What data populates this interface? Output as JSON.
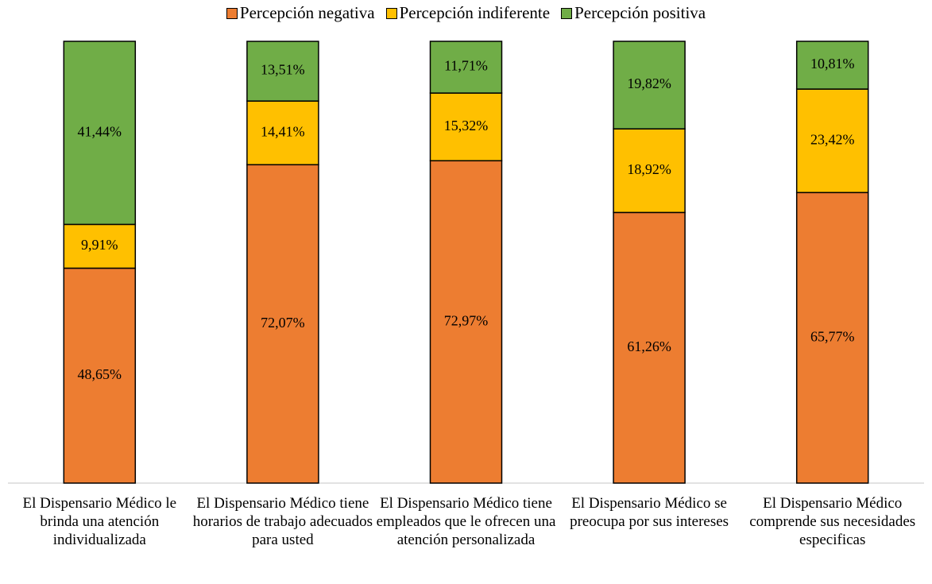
{
  "chart_data": {
    "type": "stacked_bar",
    "categories": [
      "El Dispensario Médico le brinda una atención individualizada",
      "El Dispensario Médico tiene horarios de trabajo adecuados para usted",
      "El Dispensario Médico tiene empleados que le ofrecen una atención personalizada",
      "El Dispensario Médico se preocupa por sus intereses",
      "El Dispensario Médico comprende sus necesidades especificas"
    ],
    "series": [
      {
        "name": "Percepción negativa",
        "color": "#ed7d31",
        "values": [
          48.65,
          72.07,
          72.97,
          61.26,
          65.77
        ],
        "value_labels": [
          "48,65%",
          "72,07%",
          "72,97%",
          "61,26%",
          "65,77%"
        ]
      },
      {
        "name": "Percepción indiferente",
        "color": "#ffc000",
        "values": [
          9.91,
          14.41,
          15.32,
          18.92,
          23.42
        ],
        "value_labels": [
          "9,91%",
          "14,41%",
          "15,32%",
          "18,92%",
          "23,42%"
        ]
      },
      {
        "name": "Percepción positiva",
        "color": "#70ad47",
        "values": [
          41.44,
          13.51,
          11.71,
          19.82,
          10.81
        ],
        "value_labels": [
          "41,44%",
          "13,51%",
          "11,71%",
          "19,82%",
          "10,81%"
        ]
      }
    ],
    "ylim": [
      0,
      100
    ],
    "legend": "top"
  }
}
